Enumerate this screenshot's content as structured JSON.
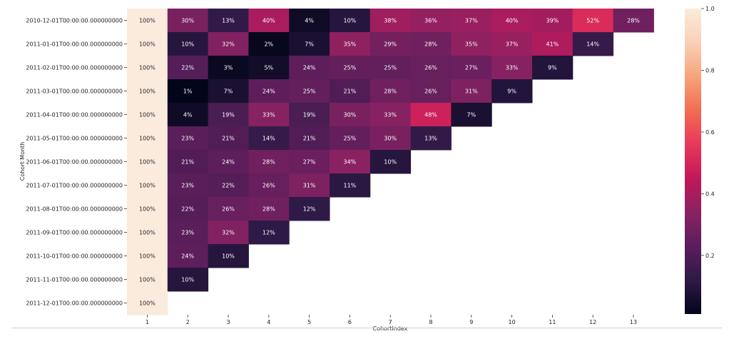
{
  "chart_data": {
    "type": "heatmap",
    "title": "",
    "xlabel": "CohortIndex",
    "ylabel": "Cohort Month",
    "x_categories": [
      "1",
      "2",
      "3",
      "4",
      "5",
      "6",
      "7",
      "8",
      "9",
      "10",
      "11",
      "12",
      "13"
    ],
    "y_categories": [
      "2010-12-01T00:00:00.000000000",
      "2011-01-01T00:00:00.000000000",
      "2011-02-01T00:00:00.000000000",
      "2011-03-01T00:00:00.000000000",
      "2011-04-01T00:00:00.000000000",
      "2011-05-01T00:00:00.000000000",
      "2011-06-01T00:00:00.000000000",
      "2011-07-01T00:00:00.000000000",
      "2011-08-01T00:00:00.000000000",
      "2011-09-01T00:00:00.000000000",
      "2011-10-01T00:00:00.000000000",
      "2011-11-01T00:00:00.000000000",
      "2011-12-01T00:00:00.000000000"
    ],
    "values": [
      [
        1.0,
        0.3,
        0.13,
        0.4,
        0.04,
        0.1,
        0.38,
        0.36,
        0.37,
        0.4,
        0.39,
        0.52,
        0.28
      ],
      [
        1.0,
        0.1,
        0.32,
        0.02,
        0.07,
        0.35,
        0.29,
        0.28,
        0.35,
        0.37,
        0.41,
        0.14,
        null
      ],
      [
        1.0,
        0.22,
        0.03,
        0.05,
        0.24,
        0.25,
        0.25,
        0.26,
        0.27,
        0.33,
        0.09,
        null,
        null
      ],
      [
        1.0,
        0.01,
        0.07,
        0.24,
        0.25,
        0.21,
        0.28,
        0.26,
        0.31,
        0.09,
        null,
        null,
        null
      ],
      [
        1.0,
        0.04,
        0.19,
        0.33,
        0.19,
        0.3,
        0.33,
        0.48,
        0.07,
        null,
        null,
        null,
        null
      ],
      [
        1.0,
        0.23,
        0.21,
        0.14,
        0.21,
        0.25,
        0.3,
        0.13,
        null,
        null,
        null,
        null,
        null
      ],
      [
        1.0,
        0.21,
        0.24,
        0.28,
        0.27,
        0.34,
        0.1,
        null,
        null,
        null,
        null,
        null,
        null
      ],
      [
        1.0,
        0.23,
        0.22,
        0.26,
        0.31,
        0.11,
        null,
        null,
        null,
        null,
        null,
        null,
        null
      ],
      [
        1.0,
        0.22,
        0.26,
        0.28,
        0.12,
        null,
        null,
        null,
        null,
        null,
        null,
        null,
        null
      ],
      [
        1.0,
        0.23,
        0.32,
        0.12,
        null,
        null,
        null,
        null,
        null,
        null,
        null,
        null,
        null
      ],
      [
        1.0,
        0.24,
        0.1,
        null,
        null,
        null,
        null,
        null,
        null,
        null,
        null,
        null,
        null
      ],
      [
        1.0,
        0.1,
        null,
        null,
        null,
        null,
        null,
        null,
        null,
        null,
        null,
        null,
        null
      ],
      [
        1.0,
        null,
        null,
        null,
        null,
        null,
        null,
        null,
        null,
        null,
        null,
        null,
        null
      ]
    ],
    "annotation_format": "percent",
    "colorbar": {
      "min": 0.01,
      "max": 1.0,
      "ticks": [
        0.2,
        0.4,
        0.6,
        0.8,
        1.0
      ],
      "tick_labels": [
        "0.2",
        "0.4",
        "0.6",
        "0.8",
        "1.0"
      ],
      "colormap": "rocket",
      "stops": [
        "#03051a",
        "#2e1a46",
        "#5a1e5b",
        "#8a2262",
        "#c2185a",
        "#e8385a",
        "#f26c53",
        "#f6a47b",
        "#f9d1b7",
        "#faebdd"
      ]
    }
  }
}
